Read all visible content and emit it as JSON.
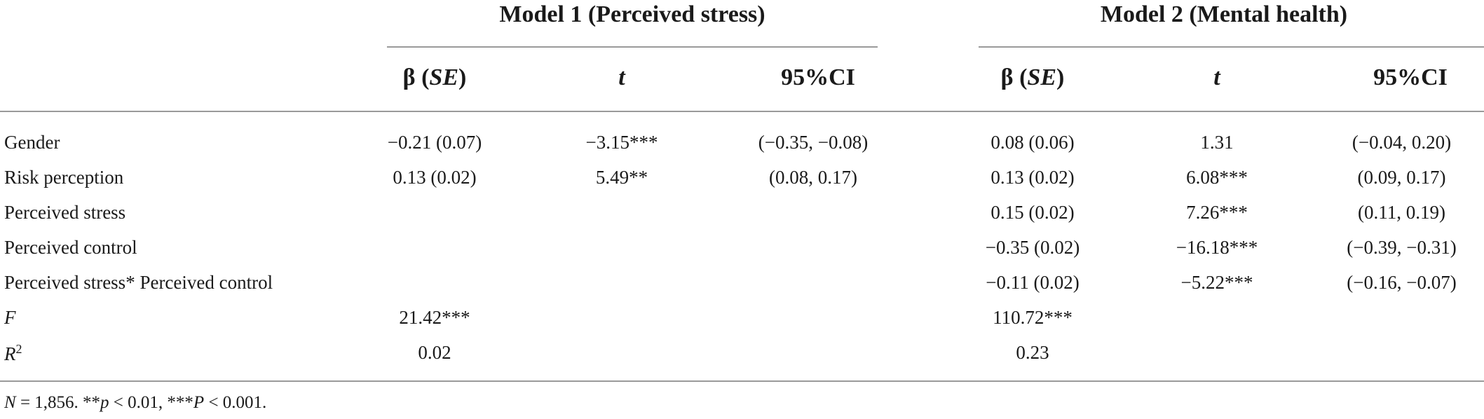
{
  "models": [
    {
      "title": "Model 1 (Perceived stress)"
    },
    {
      "title": "Model 2 (Mental health)"
    }
  ],
  "columns": {
    "beta_prefix": "β (",
    "beta_se": "SE",
    "beta_suffix": ")",
    "t": "t",
    "ci": "95%CI"
  },
  "rows": [
    {
      "label": "Gender",
      "m1": [
        "−0.21 (0.07)",
        "−3.15***",
        "(−0.35, −0.08)"
      ],
      "m2": [
        "0.08 (0.06)",
        "1.31",
        "(−0.04, 0.20)"
      ]
    },
    {
      "label": "Risk perception",
      "m1": [
        "0.13 (0.02)",
        "5.49**",
        "(0.08, 0.17)"
      ],
      "m2": [
        "0.13 (0.02)",
        "6.08***",
        "(0.09, 0.17)"
      ]
    },
    {
      "label": "Perceived stress",
      "m1": [
        "",
        "",
        ""
      ],
      "m2": [
        "0.15 (0.02)",
        "7.26***",
        "(0.11, 0.19)"
      ]
    },
    {
      "label": "Perceived control",
      "m1": [
        "",
        "",
        ""
      ],
      "m2": [
        "−0.35 (0.02)",
        "−16.18***",
        "(−0.39, −0.31)"
      ]
    },
    {
      "label": "Perceived stress* Perceived control",
      "m1": [
        "",
        "",
        ""
      ],
      "m2": [
        "−0.11 (0.02)",
        "−5.22***",
        "(−0.16, −0.07)"
      ]
    },
    {
      "label": "F",
      "m1": [
        "21.42***",
        "",
        ""
      ],
      "m2": [
        "110.72***",
        "",
        ""
      ]
    },
    {
      "label": "R",
      "label_sup": "2",
      "m1": [
        "0.02",
        "",
        ""
      ],
      "m2": [
        "0.23",
        "",
        ""
      ]
    }
  ],
  "footnote": {
    "n_var": "N",
    "n_text": " = 1,856. **",
    "p1_var": "p",
    "p1_text": " < 0.01, ***",
    "p2_var": "P",
    "p2_text": " < 0.001."
  }
}
